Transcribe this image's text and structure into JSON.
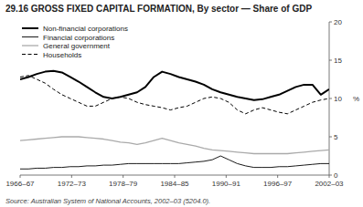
{
  "chart_data": {
    "type": "line",
    "title": "29.16  GROSS FIXED CAPITAL FORMATION, By sector — Share of GDP",
    "source": "Source: Australian System of National Accounts, 2002–03 (5204.0).",
    "y_label": "%",
    "x": [
      0,
      0.972973,
      1.945946,
      2.918919,
      3.891892,
      4.864865,
      5.837838,
      6.810811,
      7.783784,
      8.756757,
      9.72973,
      10.702703,
      11.675676,
      12.648649,
      13.621622,
      14.594595,
      15.567568,
      16.540541,
      17.513514,
      18.486486,
      19.459459,
      20.432432,
      21.405405,
      22.378378,
      23.351351,
      24.324324,
      25.297297,
      26.27027,
      27.243243,
      28.216216,
      29.189189,
      30.162162,
      31.135135,
      32.108108,
      33.081081,
      34.054054,
      35.027027,
      36
    ],
    "xlim": [
      0,
      36
    ],
    "xticks": [
      {
        "value": 0,
        "label": "1966–67"
      },
      {
        "value": 6,
        "label": "1972–73"
      },
      {
        "value": 12,
        "label": "1978–79"
      },
      {
        "value": 18,
        "label": "1984–85"
      },
      {
        "value": 24,
        "label": "1990–91"
      },
      {
        "value": 30,
        "label": "1996–97"
      },
      {
        "value": 36,
        "label": "2002–03"
      }
    ],
    "ylim": [
      0,
      20
    ],
    "yticks": [
      0,
      5,
      10,
      15,
      20
    ],
    "grid": false,
    "legend": "upper left",
    "series": [
      {
        "name": "Non-financial corporations",
        "color": "#000000",
        "line_style": "solid",
        "values": [
          12.5,
          12.8,
          13.2,
          13.5,
          13.6,
          13.4,
          12.8,
          12.2,
          11.5,
          10.8,
          10.2,
          10.0,
          10.2,
          10.5,
          10.8,
          11.5,
          12.8,
          13.5,
          13.2,
          12.8,
          12.5,
          12.2,
          11.8,
          11.2,
          10.8,
          10.5,
          10.2,
          10.0,
          9.8,
          9.9,
          10.2,
          10.5,
          11.0,
          11.5,
          11.8,
          11.8,
          10.5,
          11.2
        ]
      },
      {
        "name": "Financial corporations",
        "color": "#000000",
        "line_style": "solid",
        "values": [
          0.8,
          0.8,
          0.9,
          0.9,
          1.0,
          1.0,
          1.1,
          1.1,
          1.2,
          1.2,
          1.3,
          1.3,
          1.4,
          1.5,
          1.5,
          1.5,
          1.5,
          1.5,
          1.5,
          1.5,
          1.6,
          1.7,
          1.8,
          2.0,
          2.5,
          2.0,
          1.5,
          1.2,
          1.0,
          1.0,
          1.0,
          1.1,
          1.1,
          1.2,
          1.3,
          1.4,
          1.5,
          1.5
        ]
      },
      {
        "name": "General government",
        "color": "#aaaaaa",
        "line_style": "solid",
        "values": [
          4.5,
          4.6,
          4.7,
          4.8,
          4.9,
          5.0,
          5.0,
          5.0,
          4.9,
          4.8,
          4.7,
          4.5,
          4.3,
          4.2,
          4.0,
          4.2,
          4.5,
          4.8,
          4.5,
          4.2,
          4.0,
          3.8,
          3.5,
          3.3,
          3.2,
          3.1,
          3.0,
          2.9,
          2.8,
          2.8,
          2.8,
          2.8,
          2.8,
          2.9,
          3.0,
          3.1,
          3.2,
          3.3
        ]
      },
      {
        "name": "Households",
        "color": "#000000",
        "line_style": "dashed",
        "values": [
          12.8,
          13.0,
          12.5,
          12.0,
          11.2,
          10.5,
          10.0,
          9.5,
          9.0,
          9.0,
          9.5,
          10.0,
          10.2,
          10.0,
          9.5,
          9.2,
          9.0,
          8.8,
          8.5,
          8.8,
          9.0,
          9.5,
          10.0,
          10.2,
          10.0,
          9.5,
          8.5,
          8.0,
          8.5,
          8.8,
          8.5,
          8.2,
          8.0,
          8.5,
          9.0,
          9.5,
          9.8,
          10.0
        ]
      }
    ]
  }
}
